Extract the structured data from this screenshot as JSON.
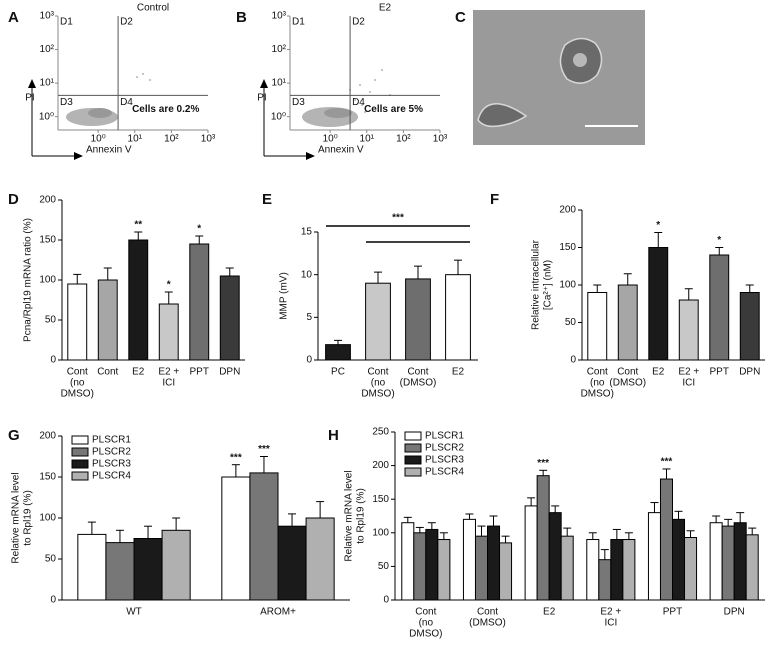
{
  "panel_labels": [
    "A",
    "B",
    "C",
    "D",
    "E",
    "F",
    "G",
    "H"
  ],
  "chart_data": [
    {
      "type": "flow",
      "title": "Control",
      "xlabel": "Annexin V",
      "ylabel": "PI",
      "log": true,
      "xlim": [
        0.08,
        1000
      ],
      "ylim": [
        0.4,
        1000
      ],
      "xticks": [
        {
          "value": 1,
          "label": "10⁰"
        },
        {
          "value": 10,
          "label": "10¹"
        },
        {
          "value": 100,
          "label": "10²"
        },
        {
          "value": 1000,
          "label": "10³"
        }
      ],
      "yticks": [
        {
          "value": 1,
          "label": "10⁰"
        },
        {
          "value": 10,
          "label": "10¹"
        },
        {
          "value": 100,
          "label": "10²"
        },
        {
          "value": 1000,
          "label": "10³"
        }
      ],
      "gate": [
        3.5,
        4.3
      ],
      "quadrants": [
        "D1",
        "D2",
        "D3",
        "D4"
      ],
      "annotation": "Cells are 0.2%"
    },
    {
      "type": "flow",
      "title": "E2",
      "xlabel": "Annexin V",
      "ylabel": "PI",
      "log": true,
      "xlim": [
        0.08,
        1000
      ],
      "ylim": [
        0.4,
        1000
      ],
      "xticks": [
        {
          "value": 1,
          "label": "10⁰"
        },
        {
          "value": 10,
          "label": "10¹"
        },
        {
          "value": 100,
          "label": "10²"
        },
        {
          "value": 1000,
          "label": "10³"
        }
      ],
      "yticks": [
        {
          "value": 1,
          "label": "10⁰"
        },
        {
          "value": 10,
          "label": "10¹"
        },
        {
          "value": 100,
          "label": "10²"
        },
        {
          "value": 1000,
          "label": "10³"
        }
      ],
      "gate": [
        3.5,
        4.3
      ],
      "quadrants": [
        "D1",
        "D2",
        "D3",
        "D4"
      ],
      "annotation": "Cells are 5%"
    },
    {
      "type": "bar",
      "ylabel": [
        "Pcna/Rpl19 mRNA ratio (%)"
      ],
      "categories": [
        [
          "Cont",
          "(no",
          "DMSO)"
        ],
        [
          "Cont"
        ],
        [
          "E2"
        ],
        [
          "E2 +",
          "ICI"
        ],
        [
          "PPT"
        ],
        [
          "DPN"
        ]
      ],
      "values": [
        95,
        100,
        150,
        70,
        145,
        105
      ],
      "errors": [
        12,
        15,
        10,
        15,
        10,
        10
      ],
      "sig": [
        null,
        null,
        "**",
        "*",
        "*",
        null
      ],
      "colors": [
        "#ffffff",
        "#a6a6a6",
        "#1a1a1a",
        "#c8c8c8",
        "#6e6e6e",
        "#3a3a3a"
      ],
      "ylim": [
        0,
        200
      ],
      "yticks": [
        0,
        50,
        100,
        150,
        200
      ]
    },
    {
      "type": "bar",
      "ylabel": [
        "MMP (mV)"
      ],
      "categories": [
        [
          "PC"
        ],
        [
          "Cont",
          "(no",
          "DMSO)"
        ],
        [
          "Cont",
          "(DMSO)"
        ],
        [
          "E2"
        ]
      ],
      "values": [
        1.8,
        9,
        9.5,
        10
      ],
      "errors": [
        0.5,
        1.3,
        1.5,
        1.7
      ],
      "colors": [
        "#1a1a1a",
        "#c8c8c8",
        "#6e6e6e",
        "#ffffff"
      ],
      "brackets": [
        {
          "from": 0,
          "to": 3,
          "label": "***"
        },
        {
          "from": 1,
          "to": 3
        }
      ],
      "ylim": [
        0,
        15
      ],
      "yticks": [
        0,
        5,
        10,
        15
      ]
    },
    {
      "type": "bar",
      "ylabel": [
        "Relative intracellular",
        "[Ca²⁺] (nM)"
      ],
      "categories": [
        [
          "Cont",
          "(no",
          "DMSO)"
        ],
        [
          "Cont",
          "(DMSO)"
        ],
        [
          "E2"
        ],
        [
          "E2 +",
          "ICI"
        ],
        [
          "PPT"
        ],
        [
          "DPN"
        ]
      ],
      "values": [
        90,
        100,
        150,
        80,
        140,
        90
      ],
      "errors": [
        10,
        15,
        20,
        15,
        10,
        10
      ],
      "sig": [
        null,
        null,
        "*",
        null,
        "*",
        null
      ],
      "colors": [
        "#ffffff",
        "#a6a6a6",
        "#1a1a1a",
        "#c8c8c8",
        "#6e6e6e",
        "#3a3a3a"
      ],
      "ylim": [
        0,
        200
      ],
      "yticks": [
        0,
        50,
        100,
        150,
        200
      ]
    },
    {
      "type": "grouped_bar",
      "ylabel": [
        "Relative mRNA level",
        "to Rpl19 (%)"
      ],
      "categories": [
        [
          "WT"
        ],
        [
          "AROM+"
        ]
      ],
      "series": [
        {
          "name": "PLSCR1",
          "color": "#ffffff",
          "values": [
            80,
            150
          ],
          "errors": [
            15,
            15
          ],
          "sig": [
            null,
            "***"
          ]
        },
        {
          "name": "PLSCR2",
          "color": "#777777",
          "values": [
            70,
            155
          ],
          "errors": [
            15,
            20
          ],
          "sig": [
            null,
            "***"
          ]
        },
        {
          "name": "PLSCR3",
          "color": "#1a1a1a",
          "values": [
            75,
            90
          ],
          "errors": [
            15,
            15
          ]
        },
        {
          "name": "PLSCR4",
          "color": "#b0b0b0",
          "values": [
            85,
            100
          ],
          "errors": [
            15,
            20
          ]
        }
      ],
      "ylim": [
        0,
        200
      ],
      "yticks": [
        0,
        50,
        100,
        150,
        200
      ]
    },
    {
      "type": "grouped_bar",
      "ylabel": [
        "Relative mRNA level",
        "to Rpl19 (%)"
      ],
      "categories": [
        [
          "Cont",
          "(no",
          "DMSO)"
        ],
        [
          "Cont",
          "(DMSO)"
        ],
        [
          "E2"
        ],
        [
          "E2 +",
          "ICI"
        ],
        [
          "PPT"
        ],
        [
          "DPN"
        ]
      ],
      "series": [
        {
          "name": "PLSCR1",
          "color": "#ffffff",
          "values": [
            115,
            120,
            140,
            90,
            130,
            115
          ],
          "errors": [
            8,
            8,
            12,
            10,
            15,
            10
          ]
        },
        {
          "name": "PLSCR2",
          "color": "#777777",
          "values": [
            100,
            95,
            185,
            60,
            180,
            110
          ],
          "errors": [
            8,
            15,
            8,
            15,
            15,
            10
          ],
          "sig": [
            null,
            null,
            "***",
            null,
            "***",
            null
          ]
        },
        {
          "name": "PLSCR3",
          "color": "#1a1a1a",
          "values": [
            105,
            110,
            130,
            90,
            120,
            115
          ],
          "errors": [
            10,
            15,
            10,
            15,
            12,
            15
          ]
        },
        {
          "name": "PLSCR4",
          "color": "#b0b0b0",
          "values": [
            90,
            85,
            95,
            90,
            93,
            97
          ],
          "errors": [
            10,
            10,
            12,
            10,
            10,
            10
          ]
        }
      ],
      "ylim": [
        0,
        250
      ],
      "yticks": [
        0,
        50,
        100,
        150,
        200,
        250
      ]
    }
  ]
}
